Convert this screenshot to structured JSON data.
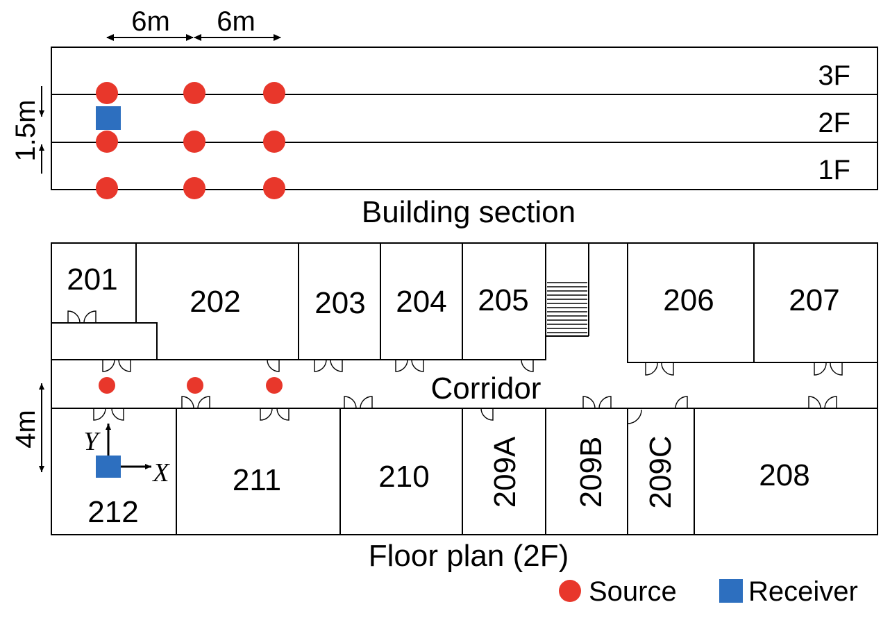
{
  "colors": {
    "source": "#e8372b",
    "receiver": "#2d6fbf",
    "line": "#000000"
  },
  "section": {
    "title": "Building section",
    "floors": [
      "3F",
      "2F",
      "1F"
    ],
    "dim_horizontal": [
      "6m",
      "6m"
    ],
    "dim_vertical": "1.5m"
  },
  "plan": {
    "title": "Floor plan (2F)",
    "corridor": "Corridor",
    "dim_vertical": "4m",
    "rooms": {
      "r201": "201",
      "r202": "202",
      "r203": "203",
      "r204": "204",
      "r205": "205",
      "r206": "206",
      "r207": "207",
      "r208": "208",
      "r209a": "209A",
      "r209b": "209B",
      "r209c": "209C",
      "r210": "210",
      "r211": "211",
      "r212": "212"
    },
    "axes": {
      "x": "X",
      "y": "Y"
    }
  },
  "legend": {
    "source": "Source",
    "receiver": "Receiver"
  }
}
